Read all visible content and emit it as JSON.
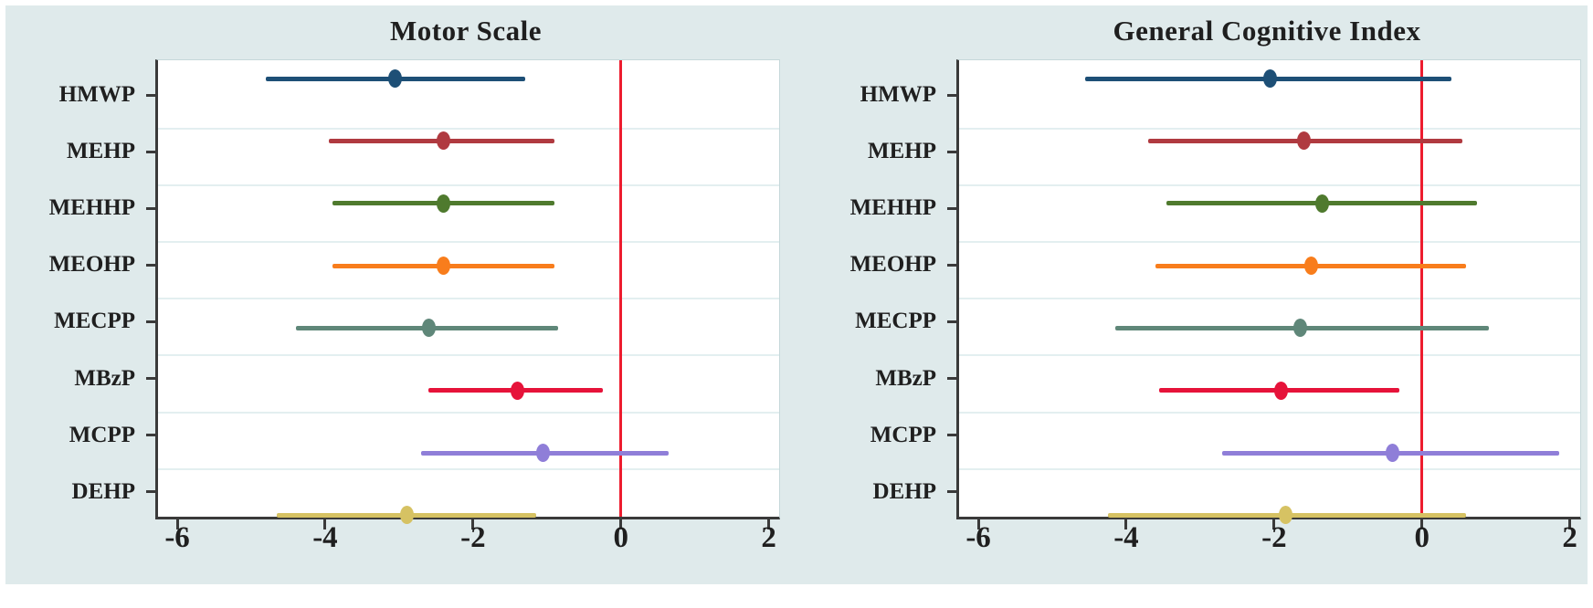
{
  "figure": {
    "background": "#dfeaeb",
    "plot_background": "#ffffff",
    "axis_color": "#3a3a3a",
    "grid_color": "#e3eff0",
    "text_color": "#1f1f1f",
    "ref_line_color": "#ed1c2e"
  },
  "chart_data": [
    {
      "type": "scatter",
      "subtype": "forest-plot",
      "title": "Motor Scale",
      "categories": [
        "HMWP",
        "MEHP",
        "MEHHP",
        "MEOHP",
        "MECPP",
        "MBzP",
        "MCPP",
        "DEHP"
      ],
      "series": [
        {
          "name": "estimate",
          "values": [
            -3.05,
            -2.4,
            -2.4,
            -2.4,
            -2.6,
            -1.4,
            -1.05,
            -2.9
          ]
        },
        {
          "name": "ci_low",
          "values": [
            -4.8,
            -3.95,
            -3.9,
            -3.9,
            -4.4,
            -2.6,
            -2.7,
            -4.65
          ]
        },
        {
          "name": "ci_high",
          "values": [
            -1.3,
            -0.9,
            -0.9,
            -0.9,
            -0.85,
            -0.25,
            0.65,
            -1.15
          ]
        }
      ],
      "point_colors": [
        "#1d4f76",
        "#b03a40",
        "#4f7a2e",
        "#f87d1c",
        "#5f8779",
        "#e6133a",
        "#8f7ed8",
        "#d6c263"
      ],
      "xlim": [
        -6.26,
        2.14
      ],
      "x_ticks": [
        -6,
        -4,
        -2,
        0,
        2
      ],
      "x_tick_labels": [
        "-6",
        "-4",
        "-2",
        "0",
        "2"
      ],
      "ref_line_x": 0,
      "grid": true,
      "legend": "none"
    },
    {
      "type": "scatter",
      "subtype": "forest-plot",
      "title": "General Cognitive Index",
      "categories": [
        "HMWP",
        "MEHP",
        "MEHHP",
        "MEOHP",
        "MECPP",
        "MBzP",
        "MCPP",
        "DEHP"
      ],
      "series": [
        {
          "name": "estimate",
          "values": [
            -2.05,
            -1.6,
            -1.35,
            -1.5,
            -1.65,
            -1.9,
            -0.4,
            -1.85
          ]
        },
        {
          "name": "ci_low",
          "values": [
            -4.55,
            -3.7,
            -3.45,
            -3.6,
            -4.15,
            -3.55,
            -2.7,
            -4.25
          ]
        },
        {
          "name": "ci_high",
          "values": [
            0.4,
            0.55,
            0.75,
            0.6,
            0.9,
            -0.3,
            1.85,
            0.6
          ]
        }
      ],
      "point_colors": [
        "#1d4f76",
        "#b03a40",
        "#4f7a2e",
        "#f87d1c",
        "#5f8779",
        "#e6133a",
        "#8f7ed8",
        "#d6c263"
      ],
      "xlim": [
        -6.26,
        2.14
      ],
      "x_ticks": [
        -6,
        -4,
        -2,
        0,
        2
      ],
      "x_tick_labels": [
        "-6",
        "-4",
        "-2",
        "0",
        "2"
      ],
      "ref_line_x": 0,
      "grid": true,
      "legend": "none"
    }
  ]
}
